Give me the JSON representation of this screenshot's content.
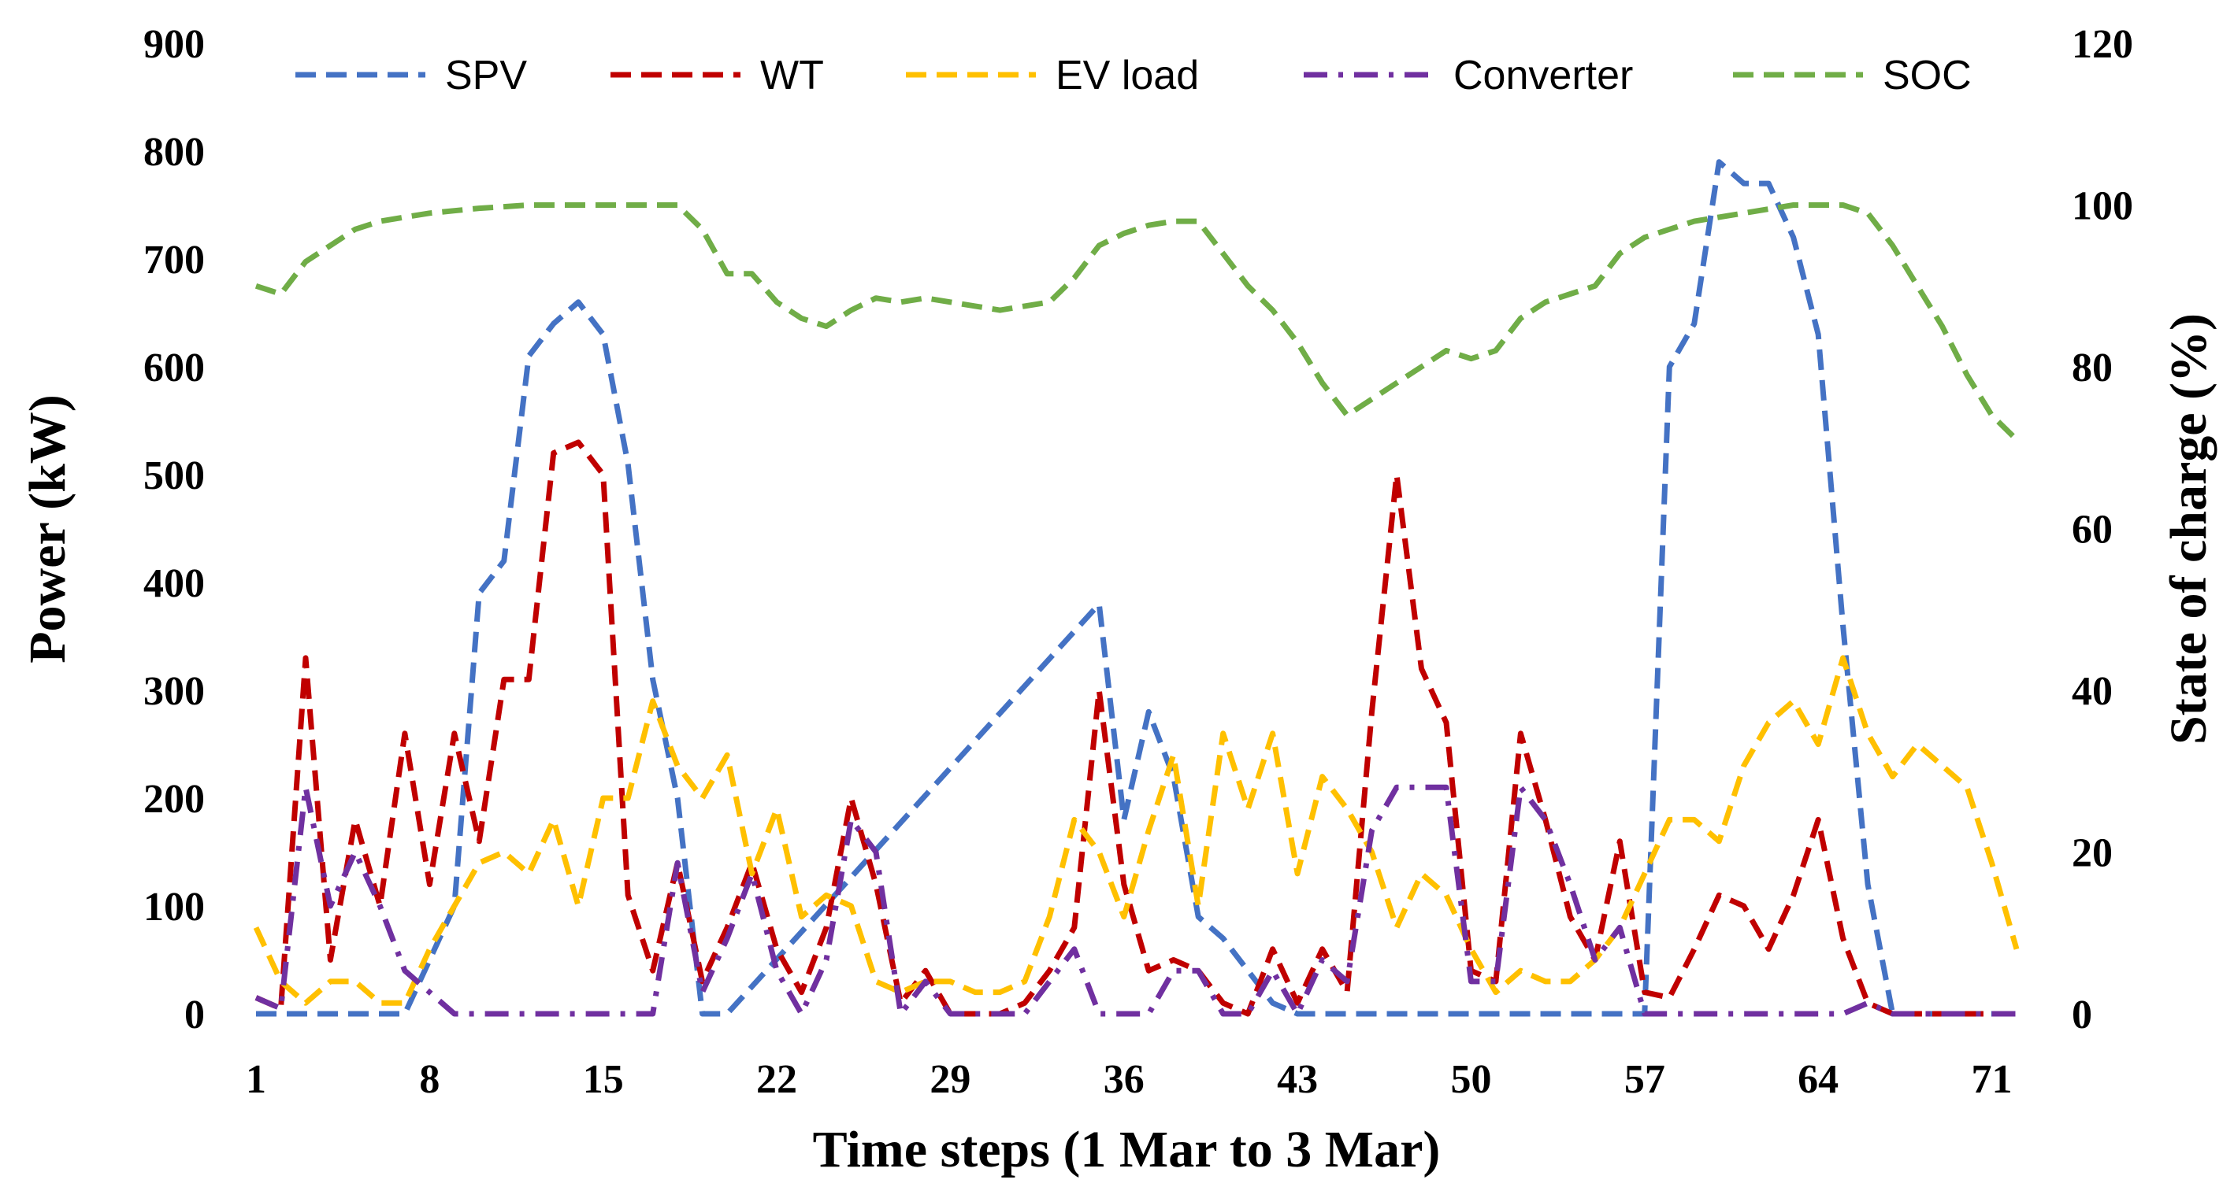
{
  "chart_data": {
    "type": "line",
    "title": "",
    "xlabel": "Time steps (1 Mar to 3 Mar)",
    "ylabel": "Power (kW)",
    "y2label": "State of charge (%)",
    "xlim": [
      1,
      72
    ],
    "ylim": [
      0,
      900
    ],
    "y2lim": [
      0,
      120
    ],
    "xticks": [
      1,
      8,
      15,
      22,
      29,
      36,
      43,
      50,
      57,
      64,
      71
    ],
    "yticks": [
      0,
      100,
      200,
      300,
      400,
      500,
      600,
      700,
      800,
      900
    ],
    "y2ticks": [
      0,
      20,
      40,
      60,
      80,
      100,
      120
    ],
    "grid": false,
    "legend_position": "top",
    "series": [
      {
        "name": "SPV",
        "axis": "left",
        "color": "#4472C4",
        "dash": "dashed",
        "x": [
          1,
          2,
          7,
          8,
          9,
          10,
          11,
          12,
          13,
          14,
          15,
          16,
          17,
          18,
          19,
          20,
          35,
          36,
          37,
          38,
          39,
          40,
          41,
          42,
          43,
          56,
          57,
          58,
          59,
          60,
          61,
          62,
          63,
          64,
          65,
          66,
          67,
          68,
          72
        ],
        "values": [
          0,
          0,
          0,
          50,
          100,
          390,
          420,
          610,
          640,
          660,
          630,
          510,
          310,
          200,
          0,
          0,
          380,
          180,
          280,
          220,
          90,
          70,
          40,
          10,
          0,
          0,
          0,
          600,
          640,
          790,
          770,
          770,
          720,
          630,
          360,
          120,
          0,
          0,
          0
        ]
      },
      {
        "name": "WT",
        "axis": "left",
        "color": "#C00000",
        "dash": "dashed",
        "x": [
          1,
          2,
          3,
          4,
          5,
          6,
          7,
          8,
          9,
          10,
          11,
          12,
          13,
          14,
          15,
          16,
          17,
          18,
          19,
          20,
          21,
          22,
          23,
          24,
          25,
          26,
          27,
          28,
          29,
          30,
          31,
          32,
          33,
          34,
          35,
          36,
          37,
          38,
          39,
          40,
          41,
          42,
          43,
          44,
          45,
          46,
          47,
          48,
          49,
          50,
          51,
          52,
          53,
          54,
          55,
          56,
          57,
          58,
          59,
          60,
          61,
          62,
          63,
          64,
          65,
          66,
          67,
          68,
          69,
          70,
          71,
          72
        ],
        "values": [
          15,
          5,
          330,
          50,
          180,
          100,
          260,
          120,
          260,
          160,
          310,
          310,
          520,
          530,
          500,
          110,
          40,
          140,
          30,
          80,
          140,
          60,
          20,
          80,
          200,
          120,
          10,
          40,
          0,
          0,
          0,
          10,
          40,
          80,
          300,
          120,
          40,
          50,
          40,
          10,
          0,
          60,
          10,
          60,
          20,
          280,
          500,
          320,
          270,
          40,
          30,
          260,
          180,
          90,
          50,
          160,
          20,
          15,
          60,
          110,
          100,
          60,
          110,
          180,
          70,
          10,
          0,
          0,
          0,
          0,
          0,
          0
        ]
      },
      {
        "name": "EV load",
        "axis": "left",
        "color": "#FFC000",
        "dash": "dashed",
        "x": [
          1,
          2,
          3,
          4,
          5,
          6,
          7,
          8,
          9,
          10,
          11,
          12,
          13,
          14,
          15,
          16,
          17,
          18,
          19,
          20,
          21,
          22,
          23,
          24,
          25,
          26,
          27,
          28,
          29,
          30,
          31,
          32,
          33,
          34,
          35,
          36,
          37,
          38,
          39,
          40,
          41,
          42,
          43,
          44,
          45,
          46,
          47,
          48,
          49,
          50,
          51,
          52,
          53,
          54,
          55,
          56,
          57,
          58,
          59,
          60,
          61,
          62,
          63,
          64,
          65,
          66,
          67,
          68,
          69,
          70,
          71,
          72
        ],
        "values": [
          80,
          30,
          10,
          30,
          30,
          10,
          10,
          60,
          100,
          140,
          150,
          130,
          180,
          100,
          200,
          200,
          290,
          230,
          200,
          240,
          130,
          190,
          90,
          110,
          100,
          30,
          20,
          30,
          30,
          20,
          20,
          30,
          90,
          180,
          150,
          90,
          170,
          240,
          100,
          260,
          190,
          260,
          130,
          220,
          190,
          150,
          80,
          130,
          110,
          60,
          20,
          40,
          30,
          30,
          50,
          80,
          130,
          180,
          180,
          160,
          230,
          270,
          290,
          250,
          330,
          260,
          220,
          250,
          230,
          210,
          140,
          60
        ]
      },
      {
        "name": "Converter",
        "axis": "left",
        "color": "#7030A0",
        "dash": "dashdot",
        "x": [
          1,
          2,
          3,
          4,
          5,
          6,
          7,
          8,
          9,
          10,
          11,
          12,
          13,
          14,
          15,
          16,
          17,
          18,
          19,
          20,
          21,
          22,
          23,
          24,
          25,
          26,
          27,
          28,
          29,
          30,
          31,
          32,
          33,
          34,
          35,
          36,
          37,
          38,
          39,
          40,
          41,
          42,
          43,
          44,
          45,
          46,
          47,
          48,
          49,
          50,
          51,
          52,
          53,
          54,
          55,
          56,
          57,
          58,
          59,
          60,
          61,
          62,
          63,
          64,
          65,
          66,
          67,
          68,
          69,
          70,
          71,
          72
        ],
        "values": [
          15,
          5,
          210,
          100,
          150,
          100,
          40,
          20,
          0,
          0,
          0,
          0,
          0,
          0,
          0,
          0,
          0,
          140,
          20,
          70,
          130,
          40,
          0,
          50,
          180,
          150,
          0,
          30,
          0,
          0,
          0,
          0,
          30,
          60,
          0,
          0,
          0,
          40,
          40,
          0,
          0,
          40,
          0,
          50,
          30,
          170,
          210,
          210,
          210,
          30,
          30,
          210,
          180,
          120,
          50,
          80,
          0,
          0,
          0,
          0,
          0,
          0,
          0,
          0,
          0,
          10,
          0,
          0,
          0,
          0,
          0,
          0
        ]
      },
      {
        "name": "SOC",
        "axis": "right",
        "color": "#70AD47",
        "dash": "dashed",
        "x": [
          1,
          2,
          3,
          4,
          5,
          6,
          7,
          8,
          9,
          10,
          11,
          12,
          13,
          14,
          15,
          16,
          17,
          18,
          19,
          20,
          21,
          22,
          23,
          24,
          25,
          26,
          27,
          28,
          29,
          30,
          31,
          32,
          33,
          34,
          35,
          36,
          37,
          38,
          39,
          40,
          41,
          42,
          43,
          44,
          45,
          46,
          47,
          48,
          49,
          50,
          51,
          52,
          53,
          54,
          55,
          56,
          57,
          58,
          59,
          60,
          61,
          62,
          63,
          64,
          65,
          66,
          67,
          68,
          69,
          70,
          71,
          72
        ],
        "values": [
          90,
          89,
          93,
          95,
          97,
          98,
          98.5,
          99,
          99.3,
          99.6,
          99.8,
          100,
          100,
          100,
          100,
          100,
          100,
          100,
          97,
          91.5,
          91.5,
          88,
          86,
          85,
          87,
          88.5,
          88,
          88.5,
          88,
          87.5,
          87,
          87.5,
          88,
          91,
          95,
          96.5,
          97.5,
          98,
          98,
          94,
          90,
          87,
          83,
          78,
          74,
          76,
          78,
          80,
          82,
          81,
          82,
          86,
          88,
          89,
          90,
          94,
          96,
          97,
          98,
          98.5,
          99,
          99.5,
          100,
          100,
          100,
          99,
          95,
          90,
          85,
          79,
          74,
          71
        ]
      }
    ]
  }
}
